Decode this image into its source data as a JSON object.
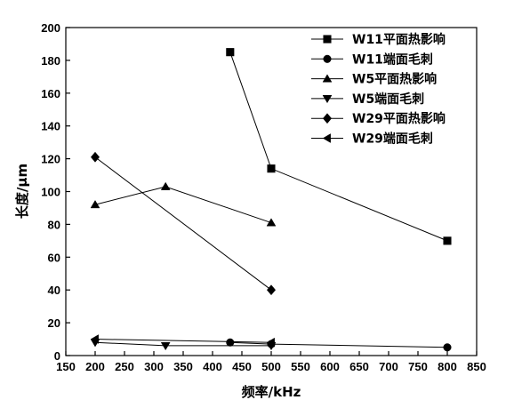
{
  "chart_data": {
    "type": "line",
    "title": "",
    "xlabel": "频率/kHz",
    "ylabel": "长度/μm",
    "xlim": [
      150,
      850
    ],
    "ylim": [
      0,
      200
    ],
    "x_ticks": [
      150,
      200,
      250,
      300,
      350,
      400,
      450,
      500,
      550,
      600,
      650,
      700,
      750,
      800,
      850
    ],
    "y_ticks": [
      0,
      20,
      40,
      60,
      80,
      100,
      120,
      140,
      160,
      180,
      200
    ],
    "grid": false,
    "legend_position": "top-right",
    "series": [
      {
        "name": "W11平面热影响",
        "marker": "square",
        "x": [
          430,
          500,
          800
        ],
        "y": [
          185,
          114,
          70
        ]
      },
      {
        "name": "W11端面毛刺",
        "marker": "circle",
        "x": [
          430,
          500,
          800
        ],
        "y": [
          8,
          7,
          5
        ]
      },
      {
        "name": "W5平面热影响",
        "marker": "triangle-up",
        "x": [
          200,
          320,
          500
        ],
        "y": [
          92,
          103,
          81
        ]
      },
      {
        "name": "W5端面毛刺",
        "marker": "triangle-down",
        "x": [
          200,
          320,
          500
        ],
        "y": [
          8,
          6,
          6
        ]
      },
      {
        "name": "W29平面热影响",
        "marker": "diamond",
        "x": [
          200,
          500
        ],
        "y": [
          121,
          40
        ]
      },
      {
        "name": "W29端面毛刺",
        "marker": "triangle-left",
        "x": [
          200,
          500
        ],
        "y": [
          10,
          8
        ]
      }
    ]
  }
}
